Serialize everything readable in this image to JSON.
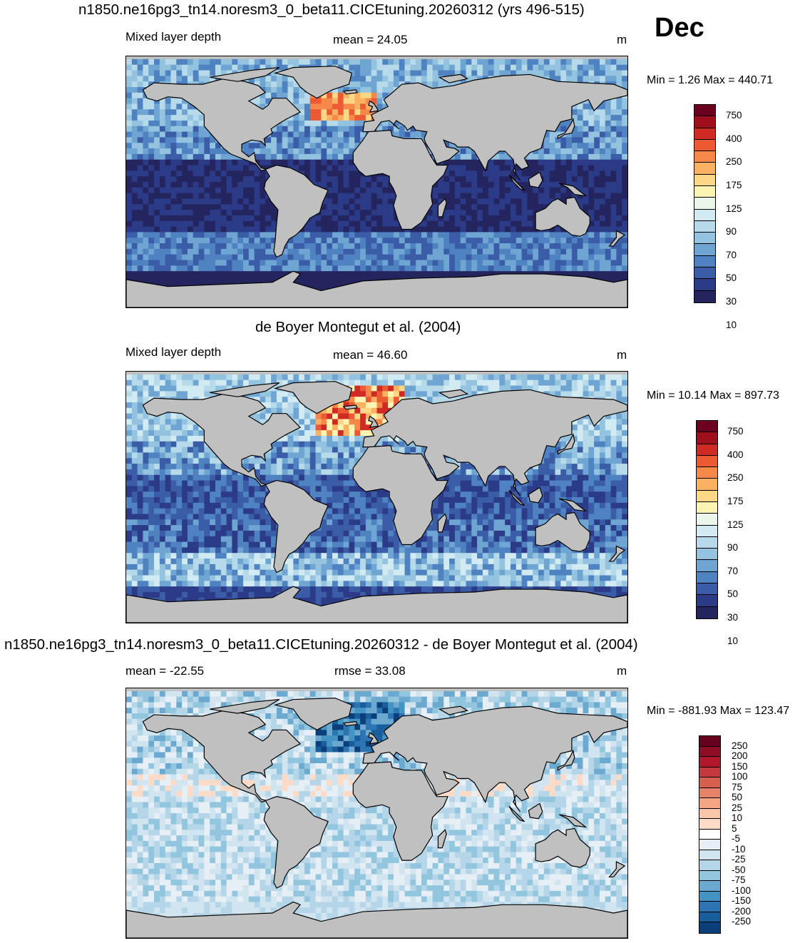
{
  "panels": [
    {
      "title": "n1850.ne16pg3_tn14.noresm3_0_beta11.CICEtuning.20260312 (yrs 496-515)",
      "left_label": "Mixed layer depth",
      "center_label": "mean =  24.05",
      "units": "m",
      "minmax": "Min =   1.26 Max = 440.71",
      "colorbar": {
        "labels": [
          "750",
          "400",
          "250",
          "175",
          "125",
          "90",
          "70",
          "50",
          "30",
          "10"
        ],
        "colors": [
          "#6b0020",
          "#a0101c",
          "#cf2a24",
          "#ec5a34",
          "#f6884a",
          "#fab262",
          "#fcd786",
          "#fcf4b2",
          "#ecf7ec",
          "#d2ebf3",
          "#b6daea",
          "#94c3e0",
          "#6fa5d2",
          "#4f82c0",
          "#3b5da8",
          "#2b3b87",
          "#24255f"
        ]
      },
      "scheme": "model"
    },
    {
      "title": "de Boyer Montegut et al. (2004)",
      "left_label": "Mixed layer depth",
      "center_label": "mean =  46.60",
      "units": "m",
      "minmax": "Min =  10.14 Max = 897.73",
      "colorbar": {
        "labels": [
          "750",
          "400",
          "250",
          "175",
          "125",
          "90",
          "70",
          "50",
          "30",
          "10"
        ],
        "colors": [
          "#6b0020",
          "#a0101c",
          "#cf2a24",
          "#ec5a34",
          "#f6884a",
          "#fab262",
          "#fcd786",
          "#fcf4b2",
          "#ecf7ec",
          "#d2ebf3",
          "#b6daea",
          "#94c3e0",
          "#6fa5d2",
          "#4f82c0",
          "#3b5da8",
          "#2b3b87",
          "#24255f"
        ]
      },
      "scheme": "obs"
    },
    {
      "title": "n1850.ne16pg3_tn14.noresm3_0_beta11.CICEtuning.20260312 - de Boyer Montegut et al. (2004)",
      "left_label": "mean = -22.55",
      "center_label": "rmse =  33.08",
      "units": "m",
      "minmax": "Min = -881.93 Max = 123.47",
      "colorbar": {
        "labels": [
          "250",
          "200",
          "150",
          "100",
          "75",
          "50",
          "25",
          "10",
          "5",
          "-5",
          "-10",
          "-25",
          "-50",
          "-75",
          "-100",
          "-150",
          "-200",
          "-250"
        ],
        "colors": [
          "#67001f",
          "#8f0e25",
          "#b2182b",
          "#c43a3c",
          "#d6604d",
          "#e58368",
          "#f4a582",
          "#f9c6aa",
          "#fddbc7",
          "#ffffff",
          "#e6eff5",
          "#d1e5f0",
          "#b5d5e8",
          "#92c5de",
          "#6ba9d0",
          "#4393c3",
          "#2c74b2",
          "#185d9c",
          "#0b3f7a"
        ]
      },
      "scheme": "diff"
    }
  ],
  "month": "Dec",
  "colors": {
    "land": "#c0c0c0",
    "coast": "#000000"
  }
}
